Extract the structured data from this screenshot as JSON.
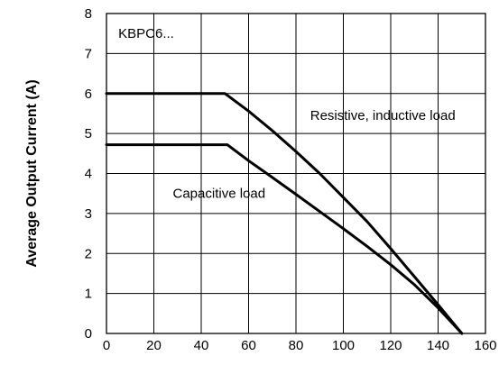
{
  "chart_data": {
    "type": "line",
    "title": "",
    "xlabel": "",
    "ylabel": "Average Output Current (A)",
    "xlim": [
      0,
      160
    ],
    "ylim": [
      0,
      8
    ],
    "x_ticks": [
      0,
      20,
      40,
      60,
      80,
      100,
      120,
      140,
      160
    ],
    "y_ticks": [
      0,
      1,
      2,
      3,
      4,
      5,
      6,
      7,
      8
    ],
    "grid": true,
    "legend": "none",
    "annotations": [
      {
        "text": "KBPC6...",
        "x": 5,
        "y": 7.5
      },
      {
        "text": "Resistive, inductive load",
        "x": 86,
        "y": 5.45
      },
      {
        "text": "Capacitive load",
        "x": 28,
        "y": 3.5
      }
    ],
    "series": [
      {
        "name": "Resistive, inductive load",
        "x": [
          0,
          50,
          60,
          70,
          80,
          90,
          100,
          110,
          120,
          130,
          140,
          150
        ],
        "y": [
          6.0,
          6.0,
          5.56,
          5.07,
          4.55,
          4.0,
          3.4,
          2.8,
          2.12,
          1.42,
          0.72,
          0
        ]
      },
      {
        "name": "Capacitive load",
        "x": [
          0,
          51,
          60,
          70,
          80,
          90,
          100,
          110,
          120,
          130,
          140,
          150
        ],
        "y": [
          4.72,
          4.72,
          4.32,
          3.9,
          3.48,
          3.05,
          2.62,
          2.18,
          1.72,
          1.22,
          0.64,
          0
        ]
      }
    ]
  }
}
